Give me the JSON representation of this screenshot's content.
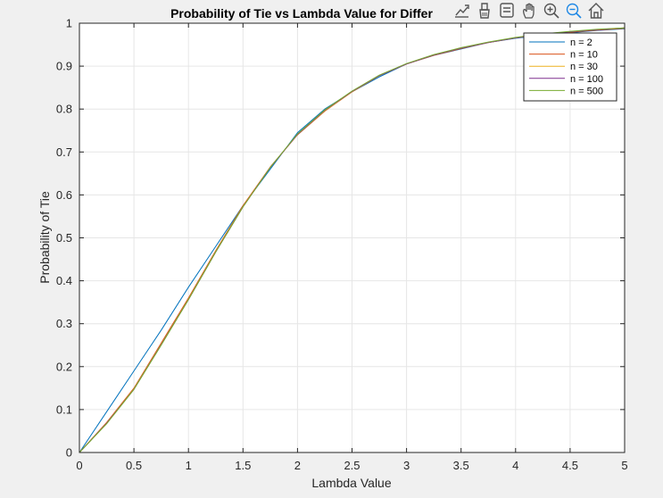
{
  "toolbar": {
    "icons": [
      "export-icon",
      "brush-icon",
      "datatip-icon",
      "pan-icon",
      "zoom-in-icon",
      "zoom-out-icon",
      "home-icon"
    ],
    "active": "zoom-out-icon",
    "active_color": "#1e88e5"
  },
  "chart_data": {
    "type": "line",
    "title": "Probability of Tie vs Lambda Value for Differ",
    "xlabel": "Lambda Value",
    "ylabel": "Probability of Tie",
    "xlim": [
      0,
      5
    ],
    "ylim": [
      0,
      1
    ],
    "xticks": [
      0,
      0.5,
      1,
      1.5,
      2,
      2.5,
      3,
      3.5,
      4,
      4.5,
      5
    ],
    "yticks": [
      0,
      0.1,
      0.2,
      0.3,
      0.4,
      0.5,
      0.6,
      0.7,
      0.8,
      0.9,
      1
    ],
    "grid": true,
    "legend_location": "top-right",
    "x": [
      0,
      0.25,
      0.5,
      0.75,
      1,
      1.25,
      1.5,
      1.75,
      2,
      2.25,
      2.5,
      2.75,
      3,
      3.25,
      3.5,
      3.75,
      4,
      4.25,
      4.5,
      4.75,
      5
    ],
    "series": [
      {
        "name": "n = 2",
        "color": "#0072bd",
        "values": [
          0,
          0.095,
          0.19,
          0.285,
          0.385,
          0.48,
          0.575,
          0.66,
          0.745,
          0.8,
          0.84,
          0.875,
          0.905,
          0.925,
          0.94,
          0.955,
          0.965,
          0.972,
          0.978,
          0.983,
          0.987
        ]
      },
      {
        "name": "n = 10",
        "color": "#d95319",
        "values": [
          0,
          0.07,
          0.15,
          0.255,
          0.36,
          0.47,
          0.575,
          0.665,
          0.74,
          0.795,
          0.84,
          0.878,
          0.905,
          0.925,
          0.941,
          0.955,
          0.966,
          0.973,
          0.979,
          0.984,
          0.988
        ]
      },
      {
        "name": "n = 30",
        "color": "#edb120",
        "values": [
          0,
          0.068,
          0.148,
          0.252,
          0.357,
          0.468,
          0.573,
          0.664,
          0.741,
          0.796,
          0.84,
          0.878,
          0.905,
          0.926,
          0.942,
          0.955,
          0.966,
          0.974,
          0.98,
          0.985,
          0.989
        ]
      },
      {
        "name": "n = 100",
        "color": "#7e2f8e",
        "values": [
          0,
          0.068,
          0.147,
          0.251,
          0.356,
          0.467,
          0.572,
          0.664,
          0.741,
          0.797,
          0.841,
          0.878,
          0.905,
          0.926,
          0.942,
          0.955,
          0.966,
          0.974,
          0.98,
          0.985,
          0.989
        ]
      },
      {
        "name": "n = 500",
        "color": "#77ac30",
        "values": [
          0,
          0.067,
          0.147,
          0.25,
          0.356,
          0.467,
          0.572,
          0.664,
          0.742,
          0.798,
          0.842,
          0.879,
          0.906,
          0.927,
          0.943,
          0.956,
          0.967,
          0.975,
          0.981,
          0.986,
          0.989
        ]
      }
    ]
  }
}
